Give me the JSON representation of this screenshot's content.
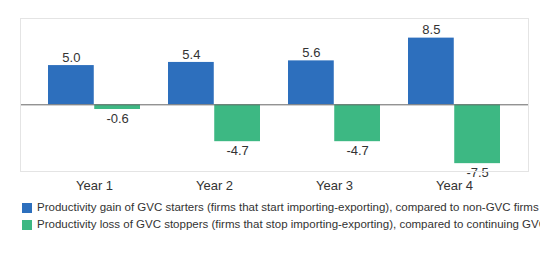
{
  "chart_data": {
    "type": "bar",
    "categories": [
      "Year 1",
      "Year 2",
      "Year 3",
      "Year 4"
    ],
    "series": [
      {
        "name": "Productivity gain of GVC starters (firms that start importing-exporting), compared to non-GVC firms",
        "color": "#2d6fbd",
        "values": [
          5.0,
          5.4,
          5.6,
          8.5
        ],
        "value_labels": [
          "5.0",
          "5.4",
          "5.6",
          "8.5"
        ]
      },
      {
        "name": "Productivity loss of GVC stoppers (firms that stop importing-exporting), compared to continuing GVC firms",
        "color": "#3db883",
        "values": [
          -0.6,
          -4.7,
          -4.7,
          -7.5
        ],
        "value_labels": [
          "-0.6",
          "-4.7",
          "-4.7",
          "-7.5"
        ]
      }
    ],
    "ylim": [
      -8.5,
      11
    ],
    "yticks": [
      0
    ],
    "grid": false,
    "data_labels": true,
    "tick_labels": "x",
    "legend": "bottom"
  }
}
